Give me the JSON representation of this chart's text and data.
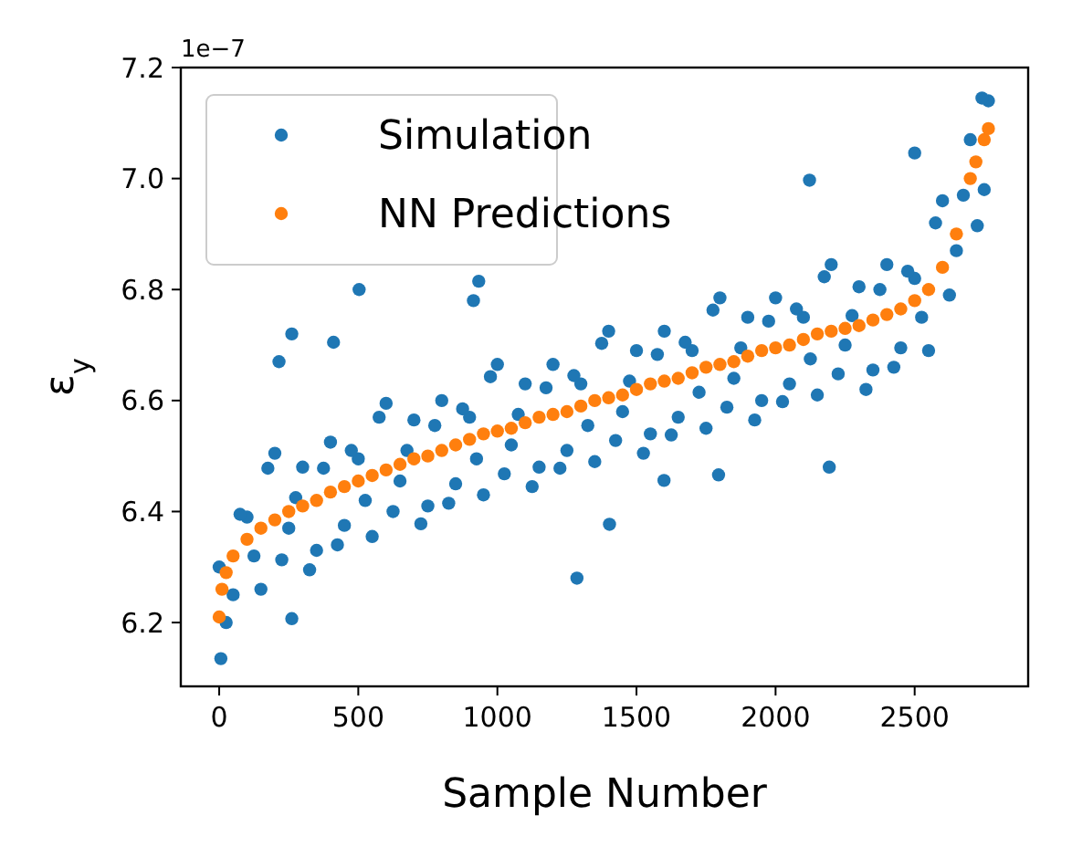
{
  "chart_data": {
    "type": "scatter",
    "xlabel": "Sample Number",
    "ylabel": "ε$_{y}$",
    "annotations": [
      "1e−7"
    ],
    "xlim": [
      -138,
      2908
    ],
    "xticks": [
      0,
      500,
      1000,
      1500,
      2000,
      2500
    ],
    "ylim": [
      6.085,
      7.2
    ],
    "yticks": [
      {
        "value": 6.2,
        "label": "6.2"
      },
      {
        "value": 6.4,
        "label": "6.4"
      },
      {
        "value": 6.6,
        "label": "6.6"
      },
      {
        "value": 6.8,
        "label": "6.8"
      },
      {
        "value": 7.0,
        "label": "7.0"
      },
      {
        "value": 7.2,
        "label": "7.2"
      }
    ],
    "grid": false,
    "legend": "top left",
    "marker": "circle",
    "series": [
      {
        "name": "Simulation",
        "color": "#1f77b4",
        "x": [
          0,
          50,
          100,
          150,
          200,
          250,
          300,
          350,
          400,
          450,
          500,
          550,
          600,
          650,
          700,
          750,
          800,
          850,
          900,
          950,
          1000,
          1050,
          1100,
          1150,
          1200,
          1250,
          1300,
          1350,
          1400,
          1450,
          1500,
          1550,
          1600,
          1650,
          1700,
          1750,
          1800,
          1850,
          1900,
          1950,
          2000,
          2050,
          2100,
          2150,
          2200,
          2250,
          2300,
          2350,
          2400,
          2450,
          2500,
          2550,
          2600,
          2650,
          2700,
          2750,
          25,
          75,
          125,
          175,
          225,
          275,
          325,
          375,
          425,
          475,
          525,
          575,
          625,
          675,
          725,
          775,
          825,
          875,
          925,
          975,
          1025,
          1075,
          1125,
          1175,
          1225,
          1275,
          1325,
          1375,
          1425,
          1475,
          1525,
          1575,
          1625,
          1675,
          1725,
          1775,
          1825,
          1875,
          1925,
          1975,
          2025,
          2075,
          2125,
          2175,
          2225,
          2275,
          2325,
          2375,
          2425,
          2475,
          2525,
          2575,
          2625,
          2675,
          2725,
          2765,
          6,
          261,
          503,
          261,
          215,
          411,
          1286,
          933,
          914,
          1403,
          2122,
          2193,
          1795,
          1599,
          2742,
          2500
        ],
        "values": [
          6.3,
          6.25,
          6.39,
          6.26,
          6.505,
          6.37,
          6.48,
          6.33,
          6.525,
          6.375,
          6.495,
          6.355,
          6.595,
          6.455,
          6.565,
          6.41,
          6.6,
          6.45,
          6.57,
          6.43,
          6.665,
          6.52,
          6.63,
          6.48,
          6.665,
          6.51,
          6.63,
          6.49,
          6.725,
          6.58,
          6.69,
          6.54,
          6.725,
          6.57,
          6.69,
          6.55,
          6.785,
          6.64,
          6.75,
          6.6,
          6.785,
          6.63,
          6.75,
          6.61,
          6.845,
          6.7,
          6.805,
          6.655,
          6.845,
          6.695,
          6.82,
          6.69,
          6.96,
          6.87,
          7.07,
          6.98,
          6.2,
          6.395,
          6.32,
          6.478,
          6.313,
          6.425,
          6.295,
          6.478,
          6.34,
          6.51,
          6.42,
          6.57,
          6.4,
          6.51,
          6.378,
          6.555,
          6.415,
          6.585,
          6.495,
          6.643,
          6.468,
          6.575,
          6.445,
          6.623,
          6.478,
          6.645,
          6.555,
          6.703,
          6.528,
          6.635,
          6.505,
          6.683,
          6.538,
          6.705,
          6.615,
          6.763,
          6.588,
          6.695,
          6.565,
          6.743,
          6.598,
          6.765,
          6.675,
          6.823,
          6.648,
          6.753,
          6.62,
          6.8,
          6.66,
          6.833,
          6.75,
          6.92,
          6.79,
          6.97,
          6.915,
          7.14,
          6.135,
          6.207,
          6.8,
          6.72,
          6.67,
          6.705,
          6.28,
          6.815,
          6.78,
          6.377,
          6.997,
          6.48,
          6.466,
          6.456,
          7.145,
          7.046
        ]
      },
      {
        "name": "NN Predictions",
        "color": "#ff7f0e",
        "x": [
          0,
          10,
          25,
          50,
          100,
          150,
          200,
          250,
          300,
          350,
          400,
          450,
          500,
          550,
          600,
          650,
          700,
          750,
          800,
          850,
          900,
          950,
          1000,
          1050,
          1100,
          1150,
          1200,
          1250,
          1300,
          1350,
          1400,
          1450,
          1500,
          1550,
          1600,
          1650,
          1700,
          1750,
          1800,
          1850,
          1900,
          1950,
          2000,
          2050,
          2100,
          2150,
          2200,
          2250,
          2300,
          2350,
          2400,
          2450,
          2500,
          2550,
          2600,
          2650,
          2700,
          2720,
          2750,
          2765
        ],
        "values": [
          6.21,
          6.26,
          6.29,
          6.32,
          6.35,
          6.37,
          6.385,
          6.4,
          6.41,
          6.42,
          6.435,
          6.445,
          6.455,
          6.465,
          6.475,
          6.485,
          6.495,
          6.5,
          6.51,
          6.52,
          6.53,
          6.54,
          6.545,
          6.55,
          6.56,
          6.57,
          6.575,
          6.58,
          6.59,
          6.6,
          6.605,
          6.61,
          6.62,
          6.63,
          6.635,
          6.64,
          6.65,
          6.66,
          6.665,
          6.67,
          6.68,
          6.69,
          6.695,
          6.7,
          6.71,
          6.72,
          6.725,
          6.73,
          6.735,
          6.745,
          6.755,
          6.765,
          6.78,
          6.8,
          6.84,
          6.9,
          7.0,
          7.03,
          7.07,
          7.09
        ]
      }
    ]
  }
}
